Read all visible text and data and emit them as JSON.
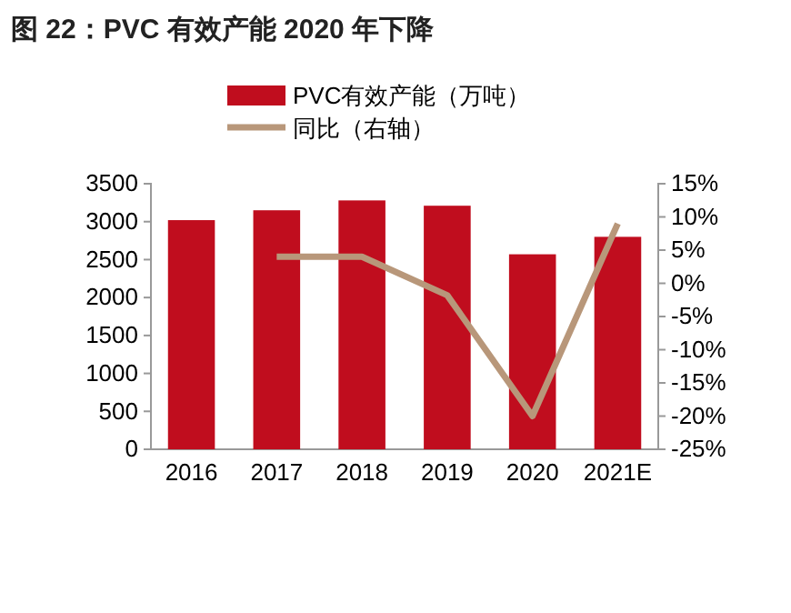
{
  "chart_data": {
    "type": "bar",
    "title": "图 22：PVC 有效产能 2020 年下降",
    "categories": [
      "2016",
      "2017",
      "2018",
      "2019",
      "2020",
      "2021E"
    ],
    "series": [
      {
        "name": "PVC有效产能（万吨）",
        "color": "#c00d1e",
        "values": [
          3020,
          3150,
          3280,
          3210,
          2570,
          2800
        ]
      },
      {
        "name": "同比（右轴）",
        "type": "line",
        "axis": "y2",
        "color": "#b8977a",
        "values": [
          null,
          4,
          4,
          -1.8,
          -20,
          9
        ]
      }
    ],
    "ylim": [
      0,
      3500
    ],
    "yticks": [
      0,
      500,
      1000,
      1500,
      2000,
      2500,
      3000,
      3500
    ],
    "y2lim": [
      -25,
      15
    ],
    "y2ticks": [
      {
        "value": -25,
        "label": "-25%"
      },
      {
        "value": -20,
        "label": "-20%"
      },
      {
        "value": -15,
        "label": "-15%"
      },
      {
        "value": -10,
        "label": "-10%"
      },
      {
        "value": -5,
        "label": "-5%"
      },
      {
        "value": 0,
        "label": "0%"
      },
      {
        "value": 5,
        "label": "5%"
      },
      {
        "value": 10,
        "label": "10%"
      },
      {
        "value": 15,
        "label": "15%"
      }
    ],
    "legend": "top",
    "marker": "none",
    "line_style": "solid"
  }
}
